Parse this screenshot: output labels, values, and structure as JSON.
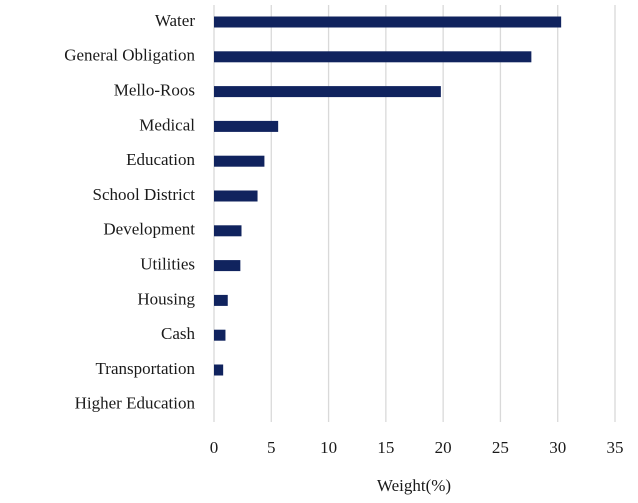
{
  "chart_data": {
    "type": "bar",
    "orientation": "horizontal",
    "categories": [
      "Water",
      "General Obligation",
      "Mello-Roos",
      "Medical",
      "Education",
      "School District",
      "Development",
      "Utilities",
      "Housing",
      "Cash",
      "Transportation",
      "Higher Education"
    ],
    "values": [
      30.3,
      27.7,
      19.8,
      5.6,
      4.4,
      3.8,
      2.4,
      2.3,
      1.2,
      1.0,
      0.8,
      0
    ],
    "color": "#10235e",
    "x_label": "Weight(%)",
    "xlim": [
      0,
      35
    ],
    "xticks": [
      0,
      5,
      10,
      15,
      20,
      25,
      30,
      35
    ],
    "grid": true
  }
}
